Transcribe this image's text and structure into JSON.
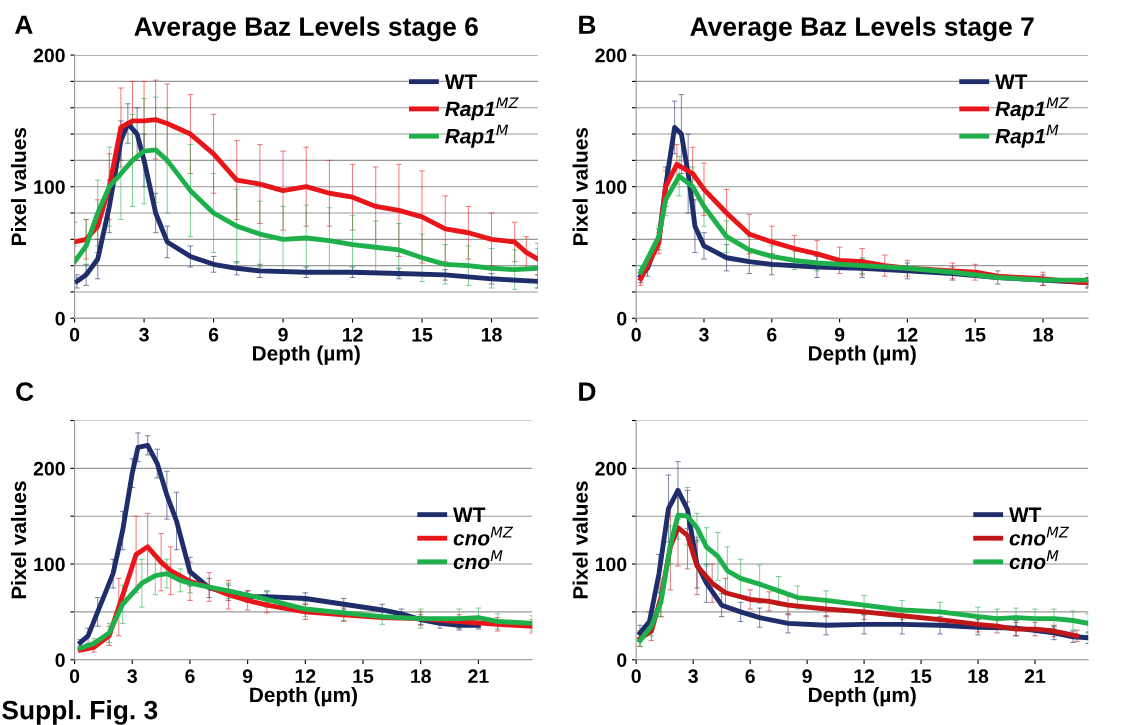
{
  "chart_data": [
    {
      "type": "line",
      "title": "Average Baz Levels stage 6",
      "xlabel": "Depth (µm)",
      "ylabel": "Pixel values",
      "annotations": [
        "A"
      ],
      "xlim": [
        0,
        20
      ],
      "xticks": [
        0,
        3,
        6,
        9,
        12,
        15,
        18
      ],
      "ylim": [
        0,
        200
      ],
      "yticks": [
        0,
        {
          "value": 20,
          "label": null
        },
        {
          "value": 40,
          "label": null
        },
        {
          "value": 60,
          "label": null
        },
        {
          "value": 80,
          "label": null
        },
        100,
        {
          "value": 120,
          "label": null
        },
        {
          "value": 140,
          "label": null
        },
        {
          "value": 160,
          "label": null
        },
        {
          "value": 180,
          "label": null
        },
        200
      ],
      "grid": "y",
      "legend": "top right",
      "line_style": "solid",
      "marker": "none",
      "series": [
        {
          "name": "WT",
          "color": "#1f2d6b",
          "x": [
            0.1,
            0.5,
            1,
            1.5,
            2,
            2.3,
            2.7,
            3,
            3.5,
            4,
            5,
            6,
            7,
            8,
            10,
            12,
            14,
            16,
            18,
            20
          ],
          "values": [
            28,
            33,
            45,
            85,
            135,
            148,
            140,
            120,
            80,
            58,
            47,
            41,
            38,
            36,
            35,
            35,
            34,
            33,
            30,
            28
          ],
          "errors": [
            5,
            8,
            15,
            20,
            15,
            15,
            20,
            20,
            15,
            12,
            8,
            6,
            5,
            5,
            4,
            4,
            4,
            4,
            4,
            5
          ]
        },
        {
          "name": "Rap1$^{MZ}$",
          "color": "#e8161b",
          "x": [
            0,
            0.5,
            1,
            1.5,
            2,
            2.5,
            3,
            3.5,
            4,
            5,
            6,
            7,
            8,
            9,
            10,
            11,
            12,
            13,
            14,
            15,
            16,
            17,
            18,
            19,
            19.5,
            20
          ],
          "values": [
            58,
            60,
            70,
            100,
            145,
            150,
            150,
            151,
            148,
            140,
            125,
            105,
            102,
            97,
            100,
            95,
            92,
            85,
            82,
            77,
            68,
            65,
            60,
            58,
            50,
            45
          ],
          "errors": [
            15,
            15,
            20,
            25,
            30,
            30,
            30,
            30,
            30,
            30,
            30,
            30,
            30,
            30,
            30,
            25,
            25,
            30,
            35,
            35,
            25,
            20,
            20,
            15,
            12,
            12
          ]
        },
        {
          "name": "Rap1$^{M}$",
          "color": "#1db04b",
          "x": [
            0,
            0.5,
            1,
            1.5,
            2,
            2.5,
            3,
            3.5,
            4,
            5,
            6,
            7,
            8,
            9,
            10,
            11,
            12,
            13,
            14,
            15,
            16,
            17,
            18,
            19,
            20
          ],
          "values": [
            43,
            55,
            80,
            100,
            110,
            120,
            127,
            128,
            120,
            97,
            80,
            70,
            64,
            60,
            61,
            59,
            56,
            54,
            52,
            46,
            41,
            40,
            38,
            37,
            38
          ],
          "errors": [
            12,
            20,
            25,
            30,
            35,
            35,
            40,
            40,
            40,
            35,
            30,
            28,
            25,
            25,
            25,
            25,
            22,
            20,
            20,
            18,
            15,
            15,
            15,
            15,
            15
          ]
        }
      ]
    },
    {
      "type": "line",
      "title": "Average Baz Levels stage 7",
      "xlabel": "Depth (µm)",
      "ylabel": "Pixel values",
      "annotations": [
        "B"
      ],
      "xlim": [
        0,
        20
      ],
      "xticks": [
        0,
        3,
        6,
        9,
        12,
        15,
        18
      ],
      "ylim": [
        0,
        200
      ],
      "yticks": [
        0,
        {
          "value": 20,
          "label": null
        },
        {
          "value": 40,
          "label": null
        },
        {
          "value": 60,
          "label": null
        },
        {
          "value": 80,
          "label": null
        },
        100,
        {
          "value": 120,
          "label": null
        },
        {
          "value": 140,
          "label": null
        },
        {
          "value": 160,
          "label": null
        },
        {
          "value": 180,
          "label": null
        },
        200
      ],
      "grid": "y",
      "legend": "top right",
      "line_style": "solid",
      "marker": "none",
      "series": [
        {
          "name": "WT",
          "color": "#1f2d6b",
          "x": [
            0.2,
            0.5,
            1,
            1.3,
            1.7,
            2,
            2.3,
            2.6,
            3,
            4,
            5,
            6,
            8,
            10,
            12,
            14,
            16,
            18,
            20
          ],
          "values": [
            32,
            38,
            60,
            100,
            145,
            140,
            110,
            70,
            55,
            46,
            43,
            41,
            39,
            38,
            36,
            34,
            31,
            29,
            27
          ],
          "errors": [
            5,
            6,
            8,
            15,
            20,
            30,
            30,
            20,
            10,
            10,
            9,
            8,
            8,
            7,
            6,
            5,
            5,
            4,
            4
          ]
        },
        {
          "name": "Rap1$^{MZ}$",
          "color": "#e8161b",
          "x": [
            0.2,
            1,
            1.3,
            1.8,
            2.5,
            3,
            4,
            5,
            6,
            7,
            8,
            9,
            10,
            11,
            12,
            14,
            15,
            16,
            18,
            20
          ],
          "values": [
            30,
            57,
            100,
            117,
            110,
            98,
            80,
            64,
            58,
            53,
            49,
            44,
            43,
            40,
            38,
            36,
            35,
            32,
            30,
            27
          ],
          "errors": [
            5,
            8,
            12,
            15,
            20,
            20,
            18,
            15,
            12,
            10,
            10,
            10,
            10,
            8,
            6,
            6,
            6,
            null,
            5,
            4
          ]
        },
        {
          "name": "Rap1$^{M}$",
          "color": "#1db04b",
          "x": [
            0.2,
            1,
            1.3,
            1.9,
            2.5,
            3,
            4,
            5,
            6,
            7,
            8,
            10,
            12,
            14,
            16,
            18,
            20
          ],
          "values": [
            35,
            62,
            90,
            108,
            100,
            85,
            62,
            52,
            47,
            44,
            42,
            40,
            38,
            35,
            31,
            29,
            29
          ],
          "errors": [
            5,
            8,
            12,
            15,
            15,
            15,
            12,
            10,
            8,
            7,
            6,
            6,
            null,
            null,
            null,
            null,
            5
          ]
        }
      ]
    },
    {
      "type": "line",
      "xlabel": "Depth (µm)",
      "ylabel": "Pixel values",
      "annotations": [
        "C",
        "Suppl. Fig. 3"
      ],
      "xlim": [
        0,
        23.8
      ],
      "xticks": [
        0,
        3,
        6,
        9,
        12,
        15,
        18,
        21
      ],
      "ylim": [
        0,
        250
      ],
      "yticks": [
        0,
        {
          "value": 50,
          "label": null
        },
        100,
        {
          "value": 150,
          "label": null
        },
        200,
        {
          "value": 250,
          "label": null
        }
      ],
      "grid": "y",
      "legend": "right",
      "line_style": "solid",
      "marker": "none",
      "series": [
        {
          "name": "WT",
          "color": "#1f2d6b",
          "x": [
            0.3,
            0.7,
            1.2,
            2,
            2.5,
            3,
            3.3,
            3.8,
            4.3,
            4.8,
            5.3,
            6,
            7,
            8,
            9,
            10,
            12,
            14,
            16,
            17,
            18,
            19,
            20,
            21
          ],
          "values": [
            18,
            25,
            50,
            90,
            135,
            195,
            222,
            224,
            205,
            172,
            145,
            92,
            75,
            70,
            66,
            66,
            64,
            58,
            52,
            48,
            42,
            38,
            36,
            36
          ],
          "errors": [
            3,
            8,
            15,
            15,
            20,
            15,
            15,
            10,
            15,
            25,
            30,
            15,
            10,
            8,
            6,
            6,
            6,
            6,
            6,
            5,
            5,
            5,
            5,
            4
          ]
        },
        {
          "name": "cno$^{MZ}$",
          "color": "#e8161b",
          "x": [
            0.3,
            1,
            1.8,
            2.3,
            3.2,
            3.8,
            4.5,
            5,
            6,
            7,
            8,
            9,
            10,
            12,
            14,
            16,
            18,
            20,
            22,
            23.8
          ],
          "values": [
            10,
            13,
            25,
            55,
            110,
            118,
            102,
            93,
            82,
            76,
            68,
            62,
            57,
            50,
            47,
            44,
            43,
            40,
            37,
            35
          ],
          "errors": [
            null,
            5,
            10,
            30,
            40,
            35,
            30,
            25,
            20,
            15,
            15,
            10,
            8,
            8,
            7,
            null,
            7,
            7,
            7,
            7
          ]
        },
        {
          "name": "cno$^{M}$",
          "color": "#1db04b",
          "x": [
            0.3,
            1,
            1.8,
            2.5,
            3.5,
            4.2,
            4.8,
            5.5,
            6,
            7,
            8,
            10,
            12,
            14,
            16,
            18,
            20,
            21,
            22,
            23.8
          ],
          "values": [
            12,
            17,
            28,
            58,
            80,
            88,
            90,
            83,
            80,
            76,
            72,
            63,
            53,
            49,
            45,
            43,
            43,
            44,
            40,
            38
          ],
          "errors": [
            null,
            5,
            10,
            20,
            25,
            20,
            15,
            12,
            10,
            null,
            8,
            8,
            8,
            8,
            8,
            10,
            10,
            10,
            8,
            8
          ]
        }
      ]
    },
    {
      "type": "line",
      "xlabel": "Depth (µm)",
      "ylabel": "Pixel values",
      "annotations": [
        "D"
      ],
      "xlim": [
        0,
        23.8
      ],
      "xticks": [
        0,
        3,
        6,
        9,
        12,
        15,
        18,
        21
      ],
      "ylim": [
        0,
        250
      ],
      "yticks": [
        0,
        {
          "value": 50,
          "label": null
        },
        100,
        {
          "value": 150,
          "label": null
        },
        200,
        {
          "value": 250,
          "label": null
        }
      ],
      "grid": "y",
      "legend": "right",
      "line_style": "solid",
      "marker": "none",
      "series": [
        {
          "name": "WT",
          "color": "#1f2d6b",
          "x": [
            0.2,
            0.7,
            1.2,
            1.7,
            2.2,
            2.7,
            3.2,
            3.7,
            4.5,
            5.5,
            6.5,
            8,
            10,
            12,
            14,
            16,
            18,
            20,
            22,
            23,
            23.8
          ],
          "values": [
            28,
            40,
            90,
            158,
            177,
            157,
            100,
            80,
            57,
            50,
            44,
            38,
            36,
            37,
            37,
            36,
            34,
            33,
            28,
            24,
            23
          ],
          "errors": [
            8,
            10,
            20,
            35,
            30,
            20,
            25,
            20,
            12,
            10,
            10,
            10,
            10,
            10,
            10,
            9,
            8,
            8,
            7,
            6,
            6
          ]
        },
        {
          "name": "cno$^{MZ}$",
          "color": "#c01818",
          "x": [
            0.2,
            0.8,
            1.3,
            1.8,
            2.2,
            2.7,
            3.2,
            4,
            4.7,
            6,
            7,
            8,
            10,
            12,
            14,
            16,
            18,
            19,
            20,
            21,
            22,
            23.2
          ],
          "values": [
            22,
            30,
            65,
            118,
            138,
            130,
            98,
            80,
            70,
            63,
            61,
            57,
            53,
            50,
            46,
            42,
            37,
            35,
            32,
            32,
            30,
            25
          ],
          "errors": [
            8,
            10,
            20,
            45,
            40,
            35,
            30,
            20,
            15,
            10,
            10,
            10,
            8,
            8,
            8,
            null,
            8,
            7,
            7,
            7,
            6,
            6
          ]
        },
        {
          "name": "cno$^{M}$",
          "color": "#1db04b",
          "x": [
            0.2,
            0.8,
            1.3,
            1.8,
            2.2,
            2.7,
            3.2,
            3.7,
            4.3,
            4.8,
            5.5,
            6.5,
            7.5,
            8.5,
            10,
            12,
            14,
            16,
            18,
            19,
            20,
            21,
            22,
            23,
            23.8
          ],
          "values": [
            20,
            35,
            60,
            120,
            151,
            150,
            138,
            118,
            108,
            93,
            85,
            79,
            72,
            65,
            62,
            57,
            52,
            50,
            45,
            43,
            44,
            43,
            43,
            41,
            38
          ],
          "errors": [
            6,
            10,
            15,
            20,
            25,
            30,
            15,
            20,
            25,
            25,
            20,
            20,
            15,
            12,
            10,
            10,
            10,
            10,
            10,
            10,
            10,
            10,
            10,
            10,
            10
          ]
        }
      ]
    }
  ]
}
